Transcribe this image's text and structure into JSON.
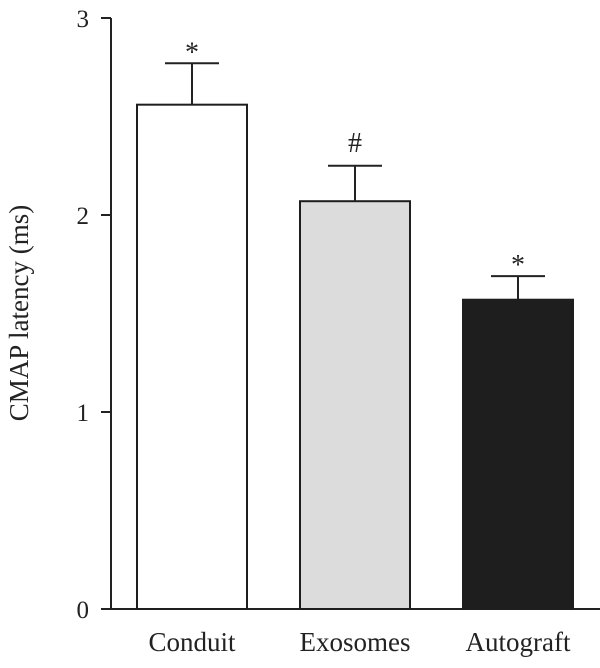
{
  "chart_data": {
    "type": "bar",
    "title": "",
    "xlabel": "",
    "ylabel": "CMAP latency (ms)",
    "ylim": [
      0,
      3
    ],
    "yticks": [
      0,
      1,
      2,
      3
    ],
    "grid": false,
    "categories": [
      "Conduit",
      "Exosomes",
      "Autograft"
    ],
    "values": [
      2.56,
      2.07,
      1.57
    ],
    "errors": [
      0.21,
      0.18,
      0.12
    ],
    "annotations": [
      "*",
      "#",
      "*"
    ],
    "bar_colors": [
      "#ffffff",
      "#dcdcdc",
      "#1e1e1e"
    ],
    "edge_color": "#1e1e1e"
  }
}
